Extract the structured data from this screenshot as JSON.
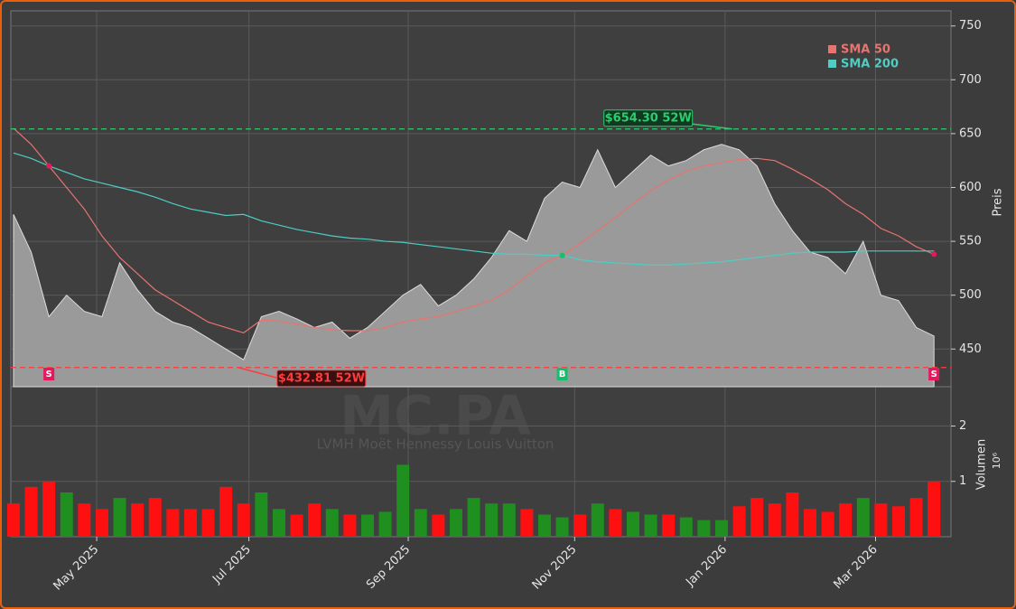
{
  "chart_data": [
    {
      "type": "area",
      "x": [
        0,
        1,
        2,
        3,
        4,
        5,
        6,
        7,
        8,
        9,
        10,
        11,
        12,
        13,
        14,
        15,
        16,
        17,
        18,
        19,
        20,
        21,
        22,
        23,
        24,
        25,
        26,
        27,
        28,
        29,
        30,
        31,
        32,
        33,
        34,
        35,
        36,
        37,
        38,
        39,
        40,
        41,
        42,
        43,
        44,
        45,
        46,
        47,
        48,
        49,
        50,
        51,
        52
      ],
      "values": [
        575,
        540,
        480,
        500,
        485,
        480,
        530,
        505,
        485,
        475,
        470,
        460,
        450,
        440,
        480,
        485,
        478,
        470,
        475,
        460,
        470,
        485,
        500,
        510,
        490,
        500,
        515,
        535,
        560,
        550,
        590,
        605,
        600,
        635,
        600,
        615,
        630,
        620,
        625,
        635,
        640,
        635,
        620,
        585,
        560,
        540,
        535,
        520,
        550,
        500,
        495,
        470,
        462
      ],
      "color": "#9a9a9a",
      "series": [
        {
          "name": "SMA 50",
          "color": "#e8736f",
          "values": [
            655,
            640,
            620,
            600,
            580,
            555,
            535,
            520,
            505,
            495,
            485,
            475,
            470,
            465,
            477,
            476,
            473,
            470,
            468,
            467,
            467,
            470,
            475,
            478,
            480,
            485,
            490,
            495,
            505,
            518,
            530,
            537,
            548,
            560,
            572,
            585,
            597,
            607,
            615,
            620,
            623,
            626,
            627,
            625,
            617,
            608,
            598,
            585,
            575,
            562,
            555,
            545,
            538
          ]
        },
        {
          "name": "SMA 200",
          "color": "#4ecdc4",
          "values": [
            632,
            627,
            620,
            614,
            608,
            604,
            600,
            596,
            591,
            585,
            580,
            577,
            574,
            575,
            569,
            565,
            561,
            558,
            555,
            553,
            552,
            550,
            549,
            547,
            545,
            543,
            541,
            539,
            538,
            538,
            537,
            537,
            533,
            531,
            530,
            529,
            528,
            528,
            529,
            530,
            531,
            533,
            535,
            537,
            539,
            540,
            540,
            540,
            541,
            541,
            541,
            541,
            541
          ]
        }
      ],
      "xlim": [
        -0.15,
        52.96
      ],
      "ylim": [
        415,
        764
      ],
      "yticks": [
        450,
        500,
        550,
        600,
        650,
        700,
        750
      ],
      "y_label": "Preis",
      "legend": "upper right",
      "grid": true,
      "reference_lines": [
        {
          "value": 654.3,
          "label": "$654.30 52W",
          "color": "#2ecc71",
          "x": 40.6
        },
        {
          "value": 432.81,
          "label": "$432.81 52W",
          "color": "#ff3b3b",
          "x": 12.7
        }
      ],
      "signals": [
        {
          "x": 2,
          "label": "S",
          "color": "#e8175d"
        },
        {
          "x": 31,
          "label": "B",
          "color": "#13c06a"
        },
        {
          "x": 52,
          "label": "S",
          "color": "#e8175d"
        }
      ],
      "watermark": [
        "MC.PA",
        "LVMH Moët Hennessy Louis Vuitton"
      ]
    },
    {
      "type": "bar",
      "x": [
        0,
        1,
        2,
        3,
        4,
        5,
        6,
        7,
        8,
        9,
        10,
        11,
        12,
        13,
        14,
        15,
        16,
        17,
        18,
        19,
        20,
        21,
        22,
        23,
        24,
        25,
        26,
        27,
        28,
        29,
        30,
        31,
        32,
        33,
        34,
        35,
        36,
        37,
        38,
        39,
        40,
        41,
        42,
        43,
        44,
        45,
        46,
        47,
        48,
        49,
        50,
        51,
        52
      ],
      "values": [
        0.6,
        0.9,
        1.0,
        0.8,
        0.6,
        0.5,
        0.7,
        0.6,
        0.7,
        0.5,
        0.5,
        0.5,
        0.9,
        0.6,
        0.8,
        0.5,
        0.4,
        0.6,
        0.5,
        0.4,
        0.4,
        0.45,
        1.3,
        0.5,
        0.4,
        0.5,
        0.7,
        0.6,
        0.6,
        0.5,
        0.4,
        0.35,
        0.4,
        0.6,
        0.5,
        0.45,
        0.4,
        0.4,
        0.35,
        0.3,
        0.3,
        0.55,
        0.7,
        0.6,
        0.8,
        0.5,
        0.45,
        0.6,
        0.7,
        0.6,
        0.55,
        0.7,
        1.0
      ],
      "up_color": "#1f8f1f",
      "down_color": "#ff1010",
      "xlim": [
        -0.15,
        52.96
      ],
      "ylim": [
        0,
        2.71
      ],
      "yticks": [
        1,
        2
      ],
      "y_label": "Volumen",
      "y_unit": "10⁶",
      "xticks": [
        {
          "value": 4.7,
          "label": "May 2025"
        },
        {
          "value": 13.3,
          "label": "Jul 2025"
        },
        {
          "value": 22.3,
          "label": "Sep 2025"
        },
        {
          "value": 31.7,
          "label": "Nov 2025"
        },
        {
          "value": 40.2,
          "label": "Jan 2026"
        },
        {
          "value": 48.7,
          "label": "Mar 2026"
        }
      ]
    }
  ]
}
